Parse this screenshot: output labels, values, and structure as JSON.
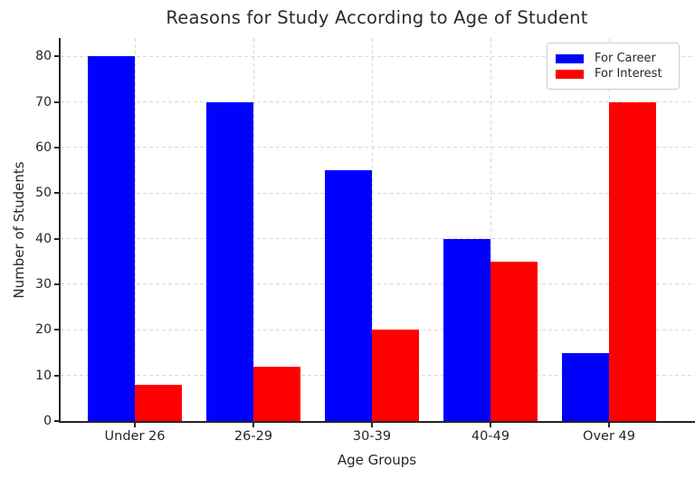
{
  "chart_data": {
    "type": "bar",
    "title": "Reasons for Study According to Age of Student",
    "xlabel": "Age Groups",
    "ylabel": "Number of Students",
    "categories": [
      "Under 26",
      "26-29",
      "30-39",
      "40-49",
      "Over 49"
    ],
    "series": [
      {
        "name": "For Career",
        "color": "#0000ff",
        "values": [
          80,
          70,
          55,
          40,
          15
        ]
      },
      {
        "name": "For Interest",
        "color": "#ff0000",
        "values": [
          8,
          12,
          20,
          35,
          70
        ]
      }
    ],
    "yticks": [
      0,
      10,
      20,
      30,
      40,
      50,
      60,
      70,
      80
    ],
    "ylim": [
      0,
      84
    ],
    "grid": true,
    "grid_color": "#d9d9d9",
    "axis_color": "#262626",
    "legend_position": "upper right"
  }
}
